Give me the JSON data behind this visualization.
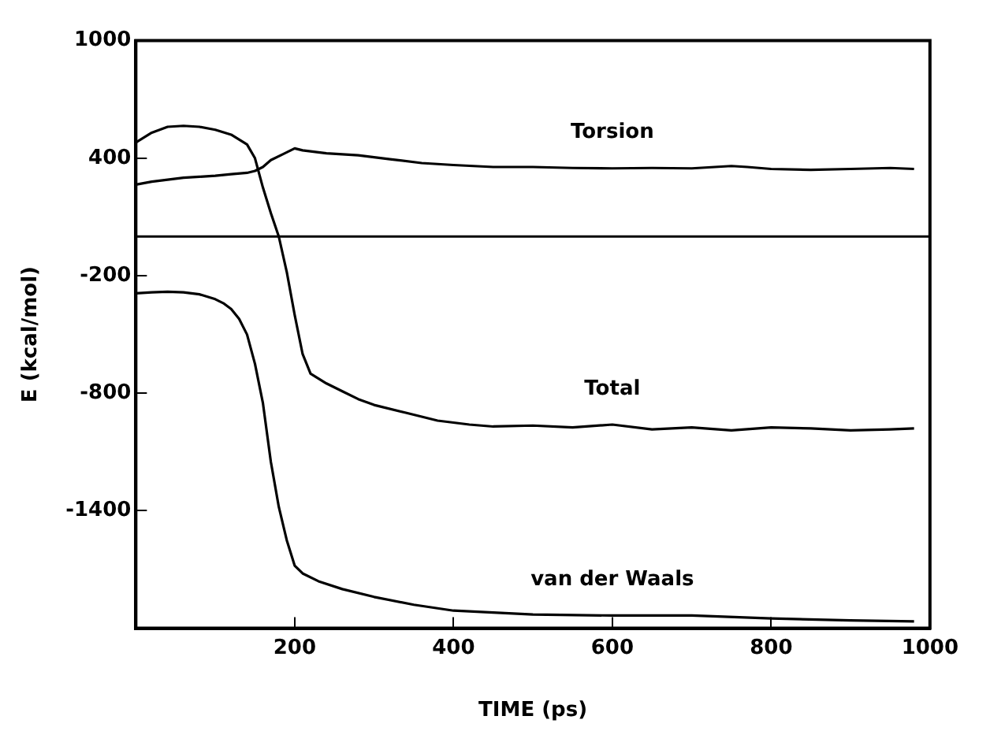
{
  "chart_data": {
    "type": "line",
    "xlabel": "TIME (ps)",
    "ylabel": "E (kcal/mol)",
    "xlim": [
      0,
      1000
    ],
    "ylim": [
      -2000,
      1000
    ],
    "xticks": [
      200,
      400,
      600,
      800,
      1000
    ],
    "yticks": [
      1000,
      400,
      -200,
      -800,
      -1400
    ],
    "grid": false,
    "legend": false,
    "marker": "none",
    "line_style": "solid",
    "ref_lines": [
      {
        "axis": "y",
        "value": 0,
        "color": "#000000"
      }
    ],
    "series": [
      {
        "name": "Torsion",
        "color": "#000000",
        "x": [
          0,
          20,
          40,
          60,
          80,
          100,
          120,
          140,
          150,
          160,
          170,
          185,
          200,
          210,
          240,
          280,
          320,
          360,
          400,
          450,
          500,
          550,
          600,
          650,
          700,
          750,
          770,
          800,
          850,
          900,
          950,
          980
        ],
        "values": [
          265,
          280,
          290,
          300,
          305,
          310,
          318,
          325,
          335,
          355,
          390,
          420,
          450,
          440,
          425,
          415,
          395,
          375,
          365,
          355,
          355,
          350,
          348,
          350,
          348,
          360,
          355,
          345,
          340,
          345,
          350,
          345
        ]
      },
      {
        "name": "Total",
        "color": "#000000",
        "x": [
          0,
          20,
          40,
          60,
          80,
          100,
          120,
          140,
          150,
          160,
          170,
          180,
          190,
          200,
          210,
          220,
          240,
          260,
          280,
          300,
          340,
          380,
          420,
          450,
          500,
          550,
          600,
          650,
          700,
          750,
          800,
          850,
          900,
          950,
          980
        ],
        "values": [
          480,
          530,
          560,
          565,
          560,
          545,
          520,
          470,
          400,
          250,
          120,
          0,
          -180,
          -400,
          -600,
          -700,
          -750,
          -790,
          -830,
          -860,
          -900,
          -940,
          -960,
          -970,
          -965,
          -975,
          -960,
          -985,
          -975,
          -990,
          -975,
          -980,
          -990,
          -985,
          -980
        ]
      },
      {
        "name": "van der Waals",
        "color": "#000000",
        "x": [
          0,
          20,
          40,
          60,
          80,
          100,
          110,
          120,
          130,
          140,
          150,
          160,
          170,
          180,
          190,
          200,
          210,
          230,
          260,
          300,
          350,
          400,
          450,
          500,
          600,
          700,
          800,
          900,
          980
        ],
        "values": [
          -290,
          -285,
          -282,
          -285,
          -295,
          -320,
          -340,
          -370,
          -420,
          -500,
          -650,
          -850,
          -1150,
          -1380,
          -1550,
          -1680,
          -1720,
          -1760,
          -1800,
          -1840,
          -1880,
          -1910,
          -1920,
          -1930,
          -1935,
          -1935,
          -1950,
          -1960,
          -1965
        ]
      }
    ]
  }
}
